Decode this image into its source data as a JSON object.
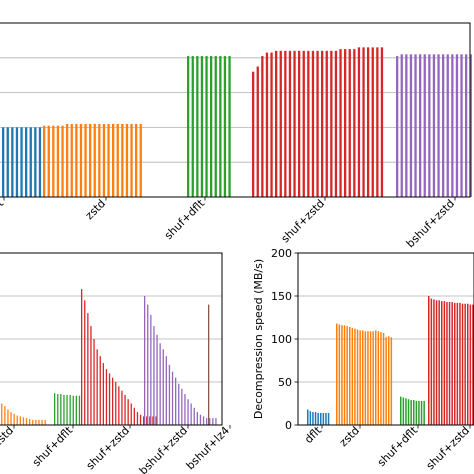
{
  "chart_data": [
    {
      "type": "bar",
      "panel": "top",
      "ylim": [
        0,
        100
      ],
      "ylabel": "",
      "xlabel": "",
      "grid": true,
      "tick_labels": [
        "dflt",
        "zstd",
        "shuf+dflt",
        "shuf+zstd",
        "bshuf+zstd"
      ],
      "series": [
        {
          "label": "dflt",
          "color": "#1f77b4",
          "values": [
            40,
            40,
            40,
            40,
            40,
            40,
            40,
            40,
            40
          ]
        },
        {
          "label": "zstd",
          "color": "#ff7f0e",
          "values": [
            41,
            41,
            41,
            41,
            41,
            42,
            42,
            42,
            42,
            42,
            42,
            42,
            42,
            42,
            42,
            42,
            42,
            42,
            42,
            42,
            42,
            42
          ]
        },
        {
          "label": "shuf+dflt",
          "color": "#2ca02c",
          "values": [
            81,
            81,
            81,
            81,
            81,
            81,
            81,
            81,
            81,
            81
          ]
        },
        {
          "label": "shuf+zstd",
          "color": "#d62728",
          "values": [
            72,
            75,
            81,
            83,
            83,
            84,
            84,
            84,
            84,
            84,
            84,
            84,
            84,
            84,
            84,
            84,
            84,
            84,
            84,
            85,
            85,
            85,
            85,
            86,
            86,
            86,
            86,
            86,
            86
          ]
        },
        {
          "label": "bshuf+zstd",
          "color": "#9467bd",
          "values": [
            81,
            82,
            82,
            82,
            82,
            82,
            82,
            82,
            82,
            82,
            82,
            82,
            82,
            82,
            82,
            82,
            82,
            82,
            82,
            82,
            82,
            82,
            82,
            82,
            82,
            82
          ]
        }
      ]
    },
    {
      "type": "bar",
      "panel": "bottom-left",
      "ylim": [
        0,
        200
      ],
      "ylabel": "",
      "xlabel": "",
      "grid": true,
      "tick_labels": [
        "zstd",
        "shuf+dflt",
        "shuf+zstd",
        "bshuf+zstd",
        "bshuf+lz4"
      ],
      "series": [
        {
          "label": "zstd",
          "color": "#ff7f0e",
          "values": [
            28,
            25,
            22,
            18,
            15,
            13,
            11,
            10,
            9,
            8,
            7,
            6,
            6,
            6,
            6,
            6
          ]
        },
        {
          "label": "shuf+dflt",
          "color": "#2ca02c",
          "values": [
            37,
            36,
            36,
            35,
            35,
            35,
            34,
            34,
            34
          ]
        },
        {
          "label": "shuf+zstd",
          "color": "#d62728",
          "values": [
            158,
            145,
            130,
            115,
            100,
            88,
            80,
            72,
            65,
            60,
            55,
            50,
            45,
            40,
            35,
            30,
            25,
            20,
            15,
            12,
            10,
            10,
            10,
            10,
            10
          ]
        },
        {
          "label": "bshuf+zstd",
          "color": "#9467bd",
          "values": [
            150,
            140,
            128,
            115,
            105,
            95,
            88,
            80,
            70,
            62,
            55,
            48,
            42,
            36,
            30,
            25,
            20,
            15,
            12,
            10,
            8,
            8,
            8,
            8
          ]
        },
        {
          "label": "bshuf+lz4",
          "color": "#8c564b",
          "values": [
            140
          ]
        }
      ]
    },
    {
      "type": "bar",
      "panel": "bottom-right",
      "ylim": [
        0,
        200
      ],
      "yticks": [
        0,
        50,
        100,
        150,
        200
      ],
      "ylabel": "Decompression speed (MB/s)",
      "xlabel": "",
      "grid": true,
      "tick_labels": [
        "dflt",
        "zstd",
        "shuf+dflt",
        "shuf+zstd"
      ],
      "series": [
        {
          "label": "dflt",
          "color": "#1f77b4",
          "values": [
            18,
            16,
            15,
            15,
            14,
            14,
            14,
            14,
            14
          ]
        },
        {
          "label": "zstd",
          "color": "#ff7f0e",
          "values": [
            118,
            117,
            116,
            116,
            115,
            114,
            113,
            112,
            111,
            110,
            110,
            109,
            109,
            109,
            109,
            110,
            109,
            108,
            107,
            102,
            103,
            102
          ]
        },
        {
          "label": "shuf+dflt",
          "color": "#2ca02c",
          "values": [
            33,
            32,
            31,
            30,
            29,
            29,
            28,
            28,
            28,
            28
          ]
        },
        {
          "label": "shuf+zstd",
          "color": "#d62728",
          "values": [
            150,
            147,
            146,
            145,
            145,
            144,
            144,
            143,
            143,
            143,
            142,
            142,
            142,
            141,
            141,
            141,
            140,
            140,
            139,
            138,
            135,
            136,
            141,
            140,
            148,
            147,
            146,
            145,
            145,
            144
          ]
        }
      ]
    }
  ]
}
